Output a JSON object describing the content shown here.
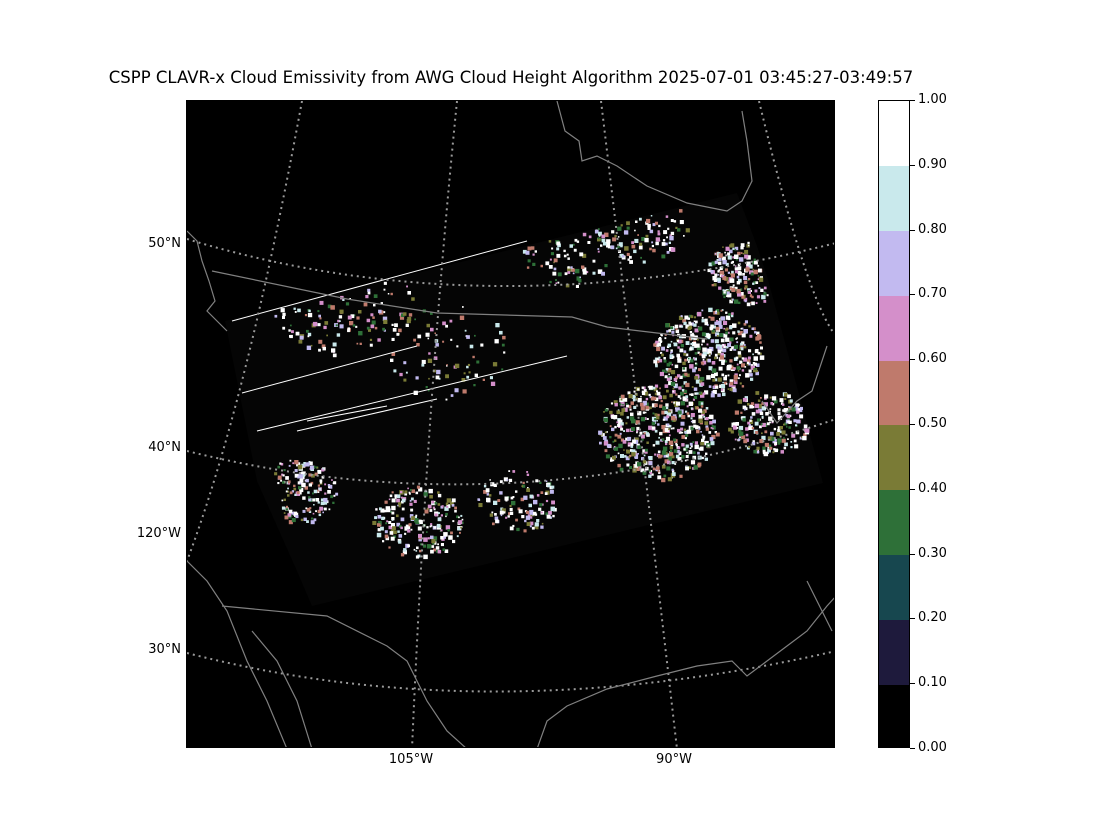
{
  "title": "CSPP CLAVR-x Cloud Emissivity from AWG Cloud Height Algorithm 2025-07-01 03:45:27-03:49:57",
  "latitude_labels": [
    {
      "text": "50°N",
      "top": 236
    },
    {
      "text": "40°N",
      "top": 440
    },
    {
      "text": "30°N",
      "top": 642
    }
  ],
  "longitude_labels": [
    {
      "text": "120°W",
      "side": "left",
      "top": 526
    },
    {
      "text": "105°W",
      "side": "bottom",
      "left": 411
    },
    {
      "text": "90°W",
      "side": "bottom",
      "left": 674
    }
  ],
  "colorbar": {
    "labels": [
      "1.00",
      "0.90",
      "0.80",
      "0.70",
      "0.60",
      "0.50",
      "0.40",
      "0.30",
      "0.20",
      "0.10",
      "0.00"
    ],
    "colors": [
      "#000000",
      "#1e1a3c",
      "#17474f",
      "#2e7038",
      "#7a7b36",
      "#bf7a6c",
      "#d48fca",
      "#c2baf0",
      "#c9e9ec",
      "#ffffff"
    ]
  },
  "map": {
    "background_color": "#000000",
    "coastline_color": "#808080",
    "gridline_color": "#999999"
  }
}
